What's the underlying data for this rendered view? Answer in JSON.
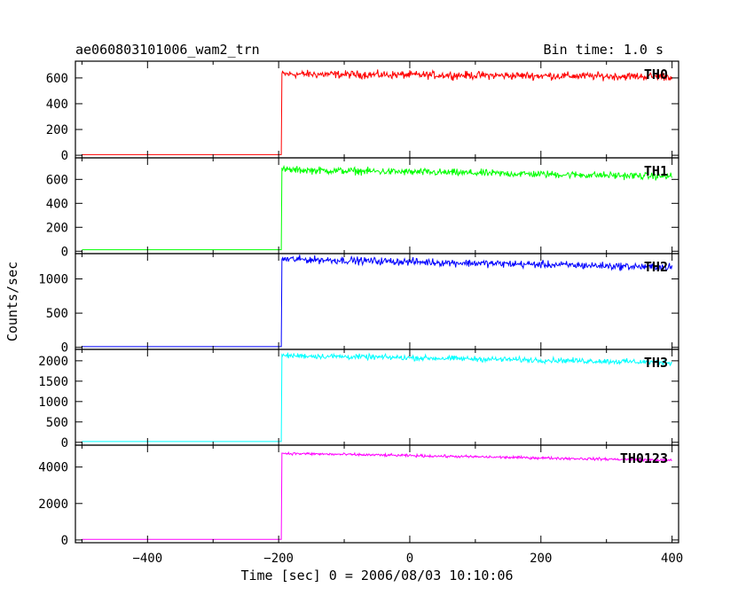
{
  "header": {
    "title": "ae060803101006_wam2_trn",
    "bin_time": "Bin time: 1.0 s"
  },
  "chart_data": {
    "type": "line",
    "xlabel": "Time [sec] 0 = 2006/08/03 10:10:06",
    "ylabel": "Counts/sec",
    "xlim": [
      -510,
      410
    ],
    "x_ticks": [
      -400,
      -200,
      0,
      200,
      400
    ],
    "x_tick_labels": [
      "−400",
      "−200",
      "0",
      "200",
      "400"
    ],
    "bin_time_s": 1.0,
    "step_time_s": -195,
    "x_start_s": -500,
    "x_end_s": 400,
    "panels": [
      {
        "name": "TH0",
        "color": "#ff0000",
        "ylim": [
          -20,
          730
        ],
        "y_ticks": [
          0,
          200,
          400,
          600
        ],
        "y_tick_labels": [
          "0",
          "200",
          "400",
          "600"
        ],
        "baseline": 5,
        "level_after_step": 630,
        "level_end": 610,
        "noise": 25
      },
      {
        "name": "TH1",
        "color": "#00ff00",
        "ylim": [
          -20,
          780
        ],
        "y_ticks": [
          0,
          200,
          400,
          600
        ],
        "y_tick_labels": [
          "0",
          "200",
          "400",
          "600"
        ],
        "baseline": 12,
        "level_after_step": 680,
        "level_end": 625,
        "noise": 25
      },
      {
        "name": "TH2",
        "color": "#0000ff",
        "ylim": [
          -30,
          1370
        ],
        "y_ticks": [
          0,
          500,
          1000
        ],
        "y_tick_labels": [
          "0",
          "500",
          "1000"
        ],
        "baseline": 10,
        "level_after_step": 1290,
        "level_end": 1170,
        "noise": 45
      },
      {
        "name": "TH3",
        "color": "#00ffff",
        "ylim": [
          -70,
          2280
        ],
        "y_ticks": [
          0,
          500,
          1000,
          1500,
          2000
        ],
        "y_tick_labels": [
          "0",
          "500",
          "1000",
          "1500",
          "2000"
        ],
        "baseline": 20,
        "level_after_step": 2130,
        "level_end": 1960,
        "noise": 55
      },
      {
        "name": "TH0123",
        "color": "#ff00ff",
        "ylim": [
          -150,
          5200
        ],
        "y_ticks": [
          0,
          2000,
          4000
        ],
        "y_tick_labels": [
          "0",
          "2000",
          "4000"
        ],
        "baseline": 30,
        "level_after_step": 4750,
        "level_end": 4370,
        "noise": 60
      }
    ]
  }
}
